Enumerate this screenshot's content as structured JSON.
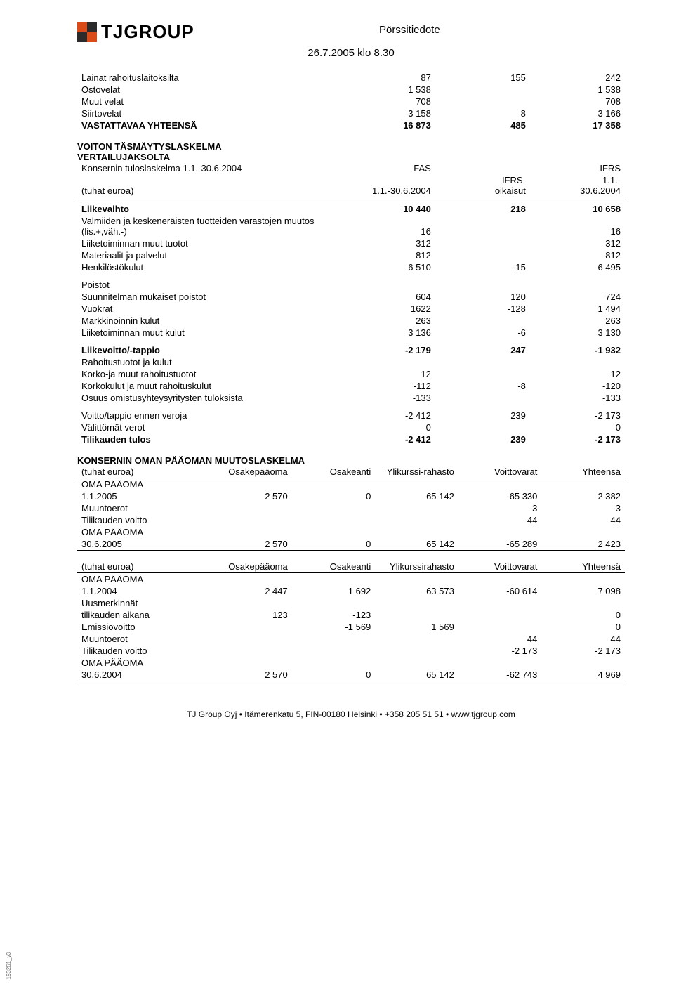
{
  "header": {
    "logo_text": "TJGROUP",
    "logo_colors": [
      "#d94c1a",
      "#2b2b2b",
      "#2b2b2b",
      "#d94c1a"
    ],
    "doc_title": "Pörssitiedote",
    "doc_date": "26.7.2005 klo 8.30"
  },
  "block1": {
    "rows": [
      {
        "label": "Lainat rahoituslaitoksilta",
        "c1": "87",
        "c2": "155",
        "c3": "242"
      },
      {
        "label": "Ostovelat",
        "c1": "1 538",
        "c2": "",
        "c3": "1 538"
      },
      {
        "label": "Muut velat",
        "c1": "708",
        "c2": "",
        "c3": "708"
      },
      {
        "label": "Siirtovelat",
        "c1": "3 158",
        "c2": "8",
        "c3": "3 166"
      },
      {
        "label": "VASTATTAVAA YHTEENSÄ",
        "c1": "16 873",
        "c2": "485",
        "c3": "17 358",
        "bold": true
      }
    ]
  },
  "block2": {
    "title1": "VOITON TÄSMÄYTYSLASKELMA",
    "title2": "VERTAILUJAKSOLTA",
    "h_row1": {
      "label": "Konsernin tuloslaskelma 1.1.-30.6.2004",
      "c1": "FAS",
      "c3": "IFRS"
    },
    "h_row2": {
      "label": "(tuhat euroa)",
      "c1": "1.1.-30.6.2004",
      "c2_top": "IFRS-",
      "c2_bot": "oikaisut",
      "c3_top": "1.1.-",
      "c3_bot": "30.6.2004"
    },
    "rows_a": [
      {
        "label": "Liikevaihto",
        "c1": "10 440",
        "c2": "218",
        "c3": "10 658",
        "bold": true
      },
      {
        "label": "Valmiiden ja keskeneräisten tuotteiden varastojen muutos (lis.+,väh.-)",
        "c1": "16",
        "c2": "",
        "c3": "16"
      },
      {
        "label": "Liiketoiminnan muut tuotot",
        "c1": "312",
        "c2": "",
        "c3": "312"
      },
      {
        "label": "Materiaalit ja palvelut",
        "c1": "812",
        "c2": "",
        "c3": "812"
      },
      {
        "label": "Henkilöstökulut",
        "c1": "6 510",
        "c2": "-15",
        "c3": "6 495"
      }
    ],
    "rows_b_title": "Poistot",
    "rows_b": [
      {
        "label": "Suunnitelman mukaiset poistot",
        "c1": "604",
        "c2": "120",
        "c3": "724"
      },
      {
        "label": "Vuokrat",
        "c1": "1622",
        "c2": "-128",
        "c3": "1 494"
      },
      {
        "label": "Markkinoinnin kulut",
        "c1": "263",
        "c2": "",
        "c3": "263"
      },
      {
        "label": "Liiketoiminnan muut kulut",
        "c1": "3 136",
        "c2": "-6",
        "c3": "3 130"
      }
    ],
    "rows_c": [
      {
        "label": "Liikevoitto/-tappio",
        "c1": "-2 179",
        "c2": "247",
        "c3": "-1 932",
        "bold": true
      },
      {
        "label": "Rahoitustuotot ja kulut"
      },
      {
        "label": "Korko-ja muut rahoitustuotot",
        "c1": "12",
        "c2": "",
        "c3": "12"
      },
      {
        "label": "Korkokulut ja muut rahoituskulut",
        "c1": "-112",
        "c2": "-8",
        "c3": "-120"
      },
      {
        "label": "Osuus omistusyhteysyritysten tuloksista",
        "c1": "-133",
        "c2": "",
        "c3": "-133"
      }
    ],
    "rows_d": [
      {
        "label": "Voitto/tappio ennen veroja",
        "c1": "-2 412",
        "c2": "239",
        "c3": "-2 173"
      },
      {
        "label": "Välittömät verot",
        "c1": "0",
        "c2": "",
        "c3": "0"
      },
      {
        "label": "Tilikauden tulos",
        "c1": "-2 412",
        "c2": "239",
        "c3": "-2 173",
        "bold": true
      }
    ]
  },
  "equity1": {
    "title": "KONSERNIN OMAN PÄÄOMAN MUUTOSLASKELMA",
    "header": {
      "c0": "(tuhat euroa)",
      "c1": "Osakepääoma",
      "c2": "Osakeanti",
      "c3": "Ylikurssi-rahasto",
      "c4": "Voittovarat",
      "c5": "Yhteensä"
    },
    "rows": [
      {
        "label": "OMA PÄÄOMA"
      },
      {
        "label": "1.1.2005",
        "c1": "2 570",
        "c2": "0",
        "c3": "65 142",
        "c4": "-65 330",
        "c5": "2 382"
      },
      {
        "label": "Muuntoerot",
        "c4": "-3",
        "c5": "-3"
      },
      {
        "label": "Tilikauden voitto",
        "c4": "44",
        "c5": "44"
      },
      {
        "label": "OMA PÄÄOMA"
      },
      {
        "label": "30.6.2005",
        "c1": "2 570",
        "c2": "0",
        "c3": "65 142",
        "c4": "-65 289",
        "c5": "2 423"
      }
    ]
  },
  "equity2": {
    "header": {
      "c0": "(tuhat euroa)",
      "c1": "Osakepääoma",
      "c2": "Osakeanti",
      "c3": "Ylikurssirahasto",
      "c4": "Voittovarat",
      "c5": "Yhteensä"
    },
    "rows": [
      {
        "label": "OMA PÄÄOMA"
      },
      {
        "label": "1.1.2004",
        "c1": "2 447",
        "c2": "1 692",
        "c3": "63 573",
        "c4": "-60 614",
        "c5": "7 098"
      },
      {
        "label": "Uusmerkinnät"
      },
      {
        "label": "tilikauden aikana",
        "c1": "123",
        "c2": "-123",
        "c5": "0"
      },
      {
        "label": "Emissiovoitto",
        "c2": "-1 569",
        "c3": "1 569",
        "c5": "0"
      },
      {
        "label": "Muuntoerot",
        "c4": "44",
        "c5": "44"
      },
      {
        "label": "Tilikauden voitto",
        "c4": "-2 173",
        "c5": "-2 173"
      },
      {
        "label": "OMA PÄÄOMA"
      },
      {
        "label": "30.6.2004",
        "c1": "2 570",
        "c2": "0",
        "c3": "65 142",
        "c4": "-62 743",
        "c5": "4 969"
      }
    ]
  },
  "footer": "TJ Group Oyj • Itämerenkatu 5, FIN-00180 Helsinki • +358 205 51 51 • www.tjgroup.com",
  "side": "193261_v3"
}
